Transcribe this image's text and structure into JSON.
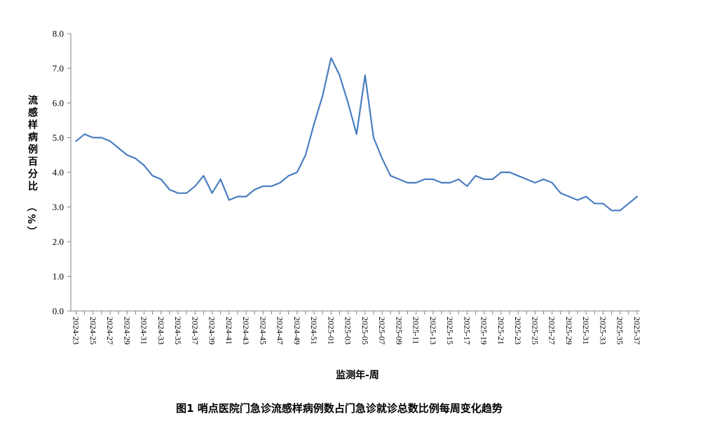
{
  "chart_data": {
    "type": "line",
    "caption": "图1 哨点医院门急诊流感样病例数占门急诊就诊总数比例每周变化趋势",
    "xlabel": "监测年-周",
    "ylabel": "流感样病例百分比（%）",
    "ylim": [
      0,
      8
    ],
    "yticks": [
      "0.0",
      "1.0",
      "2.0",
      "3.0",
      "4.0",
      "5.0",
      "6.0",
      "7.0",
      "8.0"
    ],
    "grid": false,
    "line_color": "#4a7ec0",
    "x": [
      "2024-23",
      "2024-24",
      "2024-25",
      "2024-26",
      "2024-27",
      "2024-28",
      "2024-29",
      "2024-30",
      "2024-31",
      "2024-32",
      "2024-33",
      "2024-34",
      "2024-35",
      "2024-36",
      "2024-37",
      "2024-38",
      "2024-39",
      "2024-40",
      "2024-41",
      "2024-42",
      "2024-43",
      "2024-44",
      "2024-45",
      "2024-46",
      "2024-47",
      "2024-48",
      "2024-49",
      "2024-50",
      "2024-51",
      "2024-52",
      "2025-01",
      "2025-02",
      "2025-03",
      "2025-04",
      "2025-05",
      "2025-06",
      "2025-07",
      "2025-08",
      "2025-09",
      "2025-10",
      "2025-11",
      "2025-12",
      "2025-13",
      "2025-14",
      "2025-15",
      "2025-16",
      "2025-17",
      "2025-18",
      "2025-19",
      "2025-20",
      "2025-21",
      "2025-22",
      "2025-23",
      "2025-24",
      "2025-25",
      "2025-26",
      "2025-27",
      "2025-28",
      "2025-29",
      "2025-30",
      "2025-31",
      "2025-32",
      "2025-33",
      "2025-34",
      "2025-35",
      "2025-36",
      "2025-37"
    ],
    "x_tick_labels": [
      "2024-23",
      "2024-25",
      "2024-27",
      "2024-29",
      "2024-31",
      "2024-33",
      "2024-35",
      "2024-37",
      "2024-39",
      "2024-41",
      "2024-43",
      "2024-45",
      "2024-47",
      "2024-49",
      "2024-51",
      "2025-01",
      "2025-03",
      "2025-05",
      "2025-07",
      "2025-09",
      "2025-11",
      "2025-13",
      "2025-15",
      "2025-17",
      "2025-19",
      "2025-21",
      "2025-23",
      "2025-25",
      "2025-27",
      "2025-29",
      "2025-31",
      "2025-33",
      "2025-35",
      "2025-37"
    ],
    "series": [
      {
        "values": [
          4.9,
          5.1,
          5.0,
          5.0,
          4.9,
          4.7,
          4.5,
          4.4,
          4.2,
          3.9,
          3.8,
          3.5,
          3.4,
          3.4,
          3.6,
          3.9,
          3.4,
          3.8,
          3.2,
          3.3,
          3.3,
          3.5,
          3.6,
          3.6,
          3.7,
          3.9,
          4.0,
          4.5,
          5.4,
          6.2,
          7.3,
          6.8,
          6.0,
          5.1,
          6.8,
          5.0,
          4.4,
          3.9,
          3.8,
          3.7,
          3.7,
          3.8,
          3.8,
          3.7,
          3.7,
          3.8,
          3.6,
          3.9,
          3.8,
          3.8,
          4.0,
          4.0,
          3.9,
          3.8,
          3.7,
          3.8,
          3.7,
          3.4,
          3.3,
          3.2,
          3.3,
          3.1,
          3.1,
          2.9,
          2.9,
          3.1,
          3.3
        ]
      }
    ]
  }
}
